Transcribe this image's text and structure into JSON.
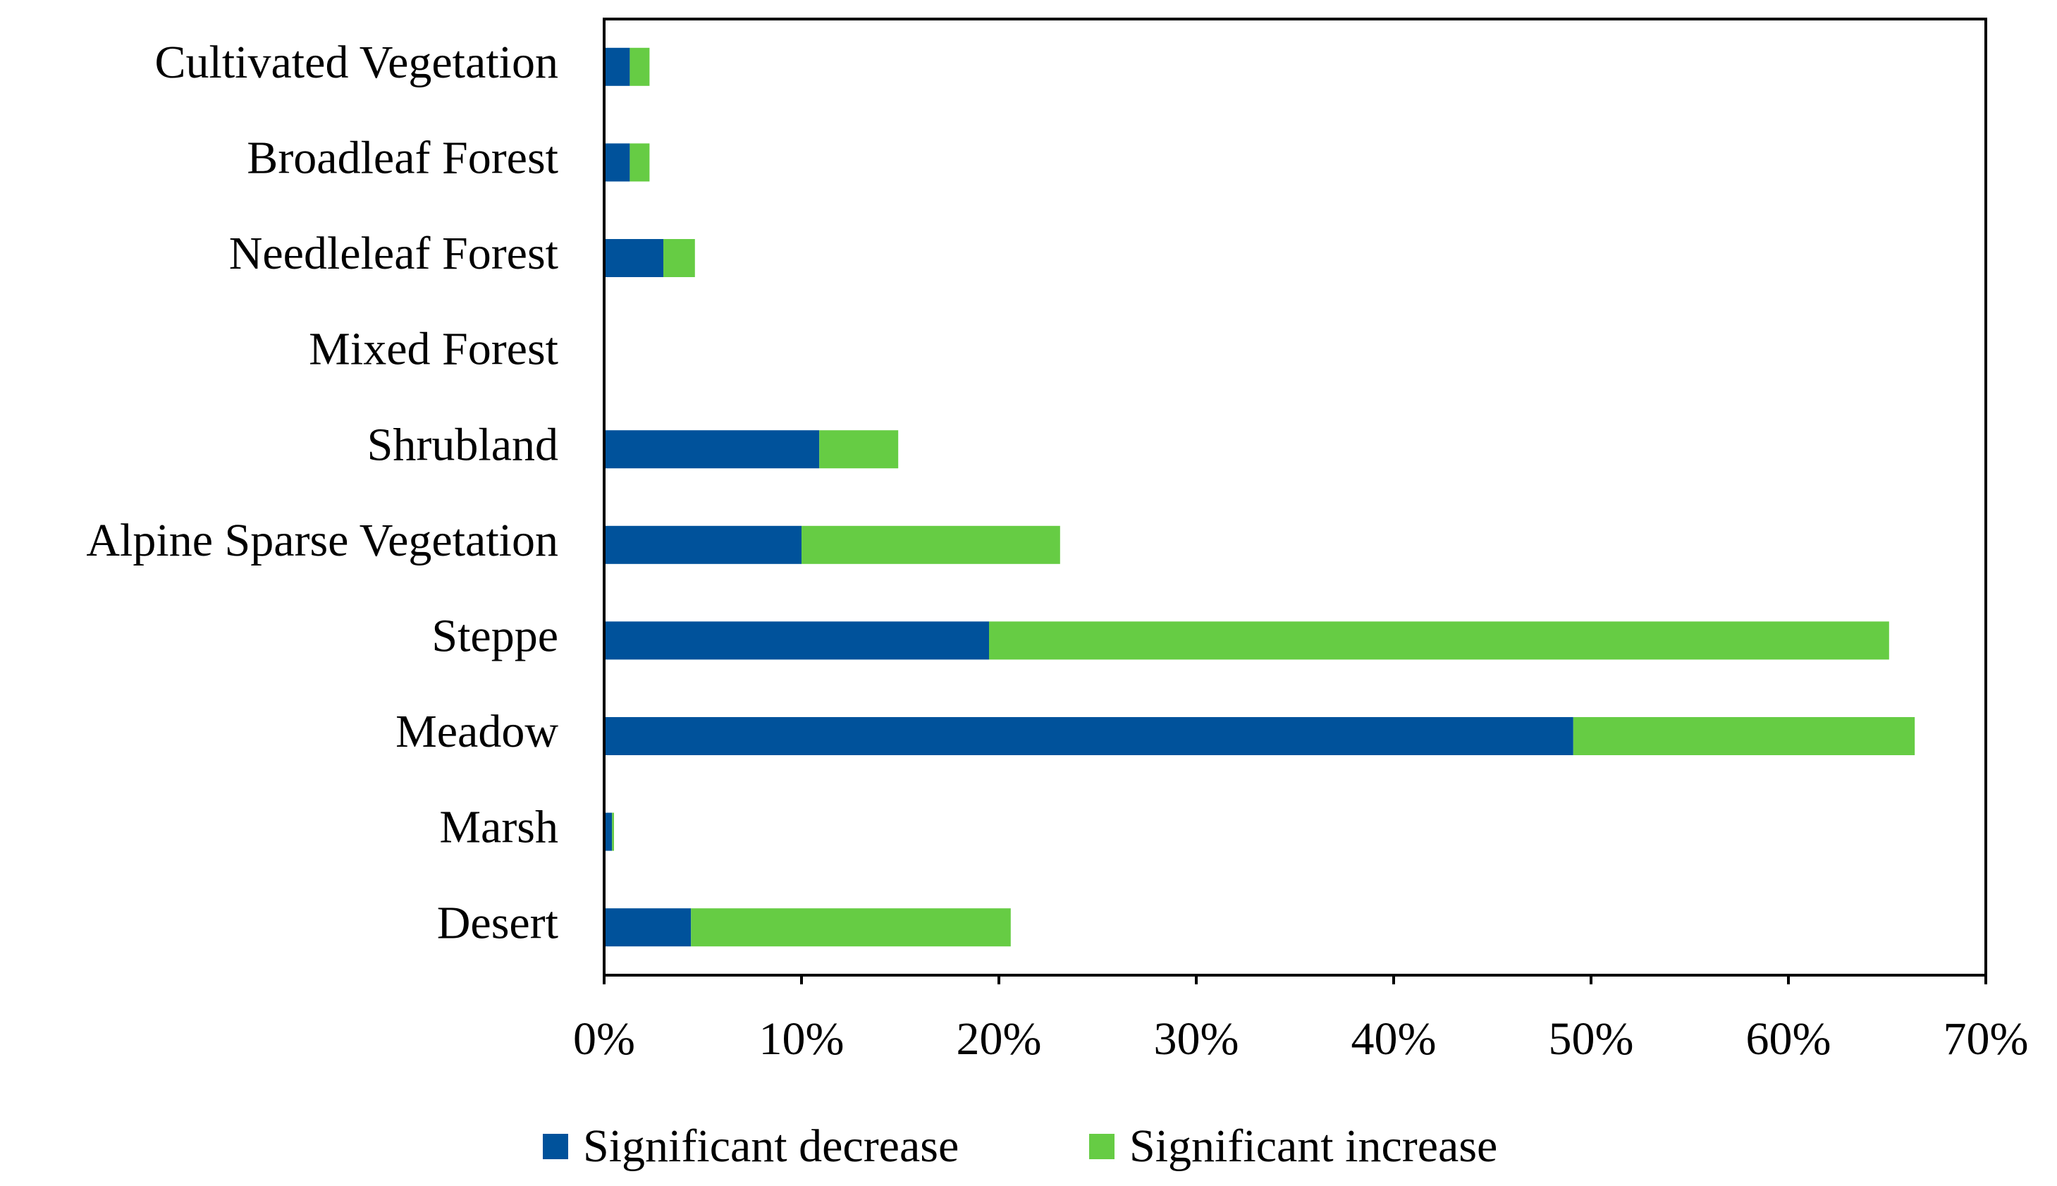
{
  "chart_data": {
    "type": "bar",
    "orientation": "horizontal",
    "stacked": true,
    "title": "",
    "xlabel": "",
    "ylabel": "",
    "xlim": [
      0,
      70
    ],
    "x_ticks": [
      "0%",
      "10%",
      "20%",
      "30%",
      "40%",
      "50%",
      "60%",
      "70%"
    ],
    "categories": [
      "Cultivated Vegetation",
      "Broadleaf Forest",
      "Needleleaf Forest",
      "Mixed Forest",
      "Shrubland",
      "Alpine Sparse Vegetation",
      "Steppe",
      "Meadow",
      "Marsh",
      "Desert"
    ],
    "series": [
      {
        "name": "Significant decrease",
        "color": "#00529b",
        "values": [
          1.3,
          1.3,
          3.0,
          0,
          10.9,
          10.0,
          19.5,
          49.1,
          0.4,
          4.4
        ]
      },
      {
        "name": "Significant increase",
        "color": "#66cc44",
        "values": [
          1.0,
          1.0,
          1.6,
          0,
          4.0,
          13.1,
          45.6,
          17.3,
          0.1,
          16.2
        ]
      }
    ],
    "legend_position": "bottom",
    "grid": false
  }
}
